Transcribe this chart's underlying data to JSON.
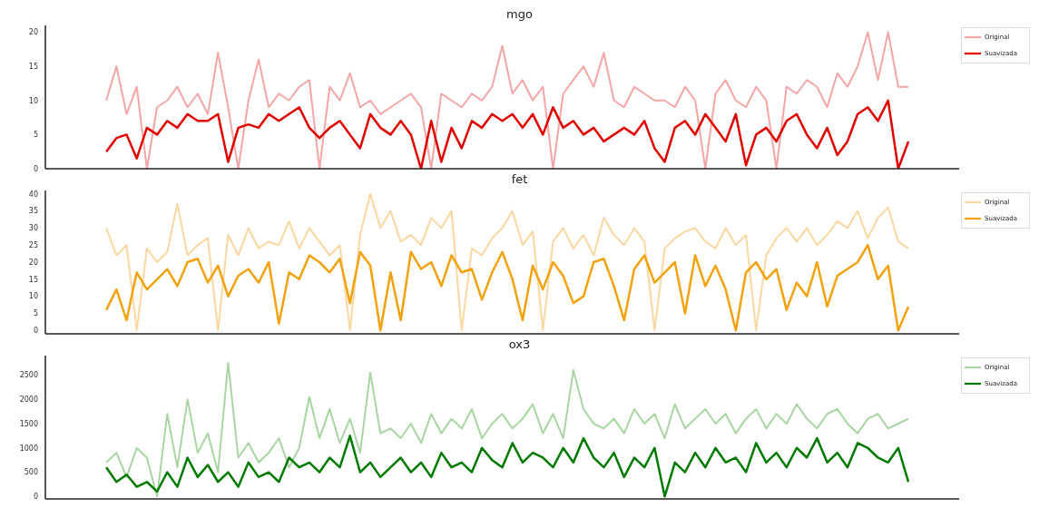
{
  "chart_data": [
    {
      "type": "line",
      "title": "mgo",
      "categories": [
        null,
        null,
        null,
        null,
        null,
        null,
        null,
        null,
        null,
        null,
        null,
        null,
        null,
        null,
        null,
        null,
        null,
        null,
        null,
        null,
        null,
        null,
        null,
        null,
        null,
        null,
        null,
        null,
        null,
        null,
        null,
        null,
        null,
        null,
        null,
        null,
        null,
        null,
        null,
        null,
        null,
        null,
        null,
        null,
        null,
        null,
        null,
        null,
        null,
        null,
        null,
        null,
        null,
        null,
        null,
        null,
        null,
        null,
        null,
        null,
        null,
        null,
        null,
        null,
        null,
        null,
        null,
        null,
        null,
        null,
        null,
        null,
        null,
        null,
        null,
        null,
        null,
        null,
        null,
        null
      ],
      "ylim": [
        0,
        21
      ],
      "yticks": [
        0,
        5,
        10,
        15,
        20
      ],
      "legend": "top right",
      "tick_labels": "y",
      "marker": "none",
      "line_style": "solid",
      "series": [
        {
          "name": "Original",
          "color": "#f4a6a6",
          "values": [
            10,
            15,
            8,
            12,
            0,
            9,
            10,
            12,
            9,
            11,
            8,
            17,
            9,
            0,
            10,
            16,
            9,
            11,
            10,
            12,
            13,
            0,
            12,
            10,
            14,
            9,
            10,
            8,
            9,
            10,
            11,
            9,
            0,
            11,
            10,
            9,
            11,
            10,
            12,
            18,
            11,
            13,
            10,
            12,
            0,
            11,
            13,
            15,
            12,
            17,
            10,
            9,
            12,
            11,
            10,
            10,
            9,
            12,
            10,
            0,
            11,
            13,
            10,
            9,
            12,
            10,
            0,
            12,
            11,
            13,
            12,
            9,
            14,
            12,
            15,
            20,
            13,
            20,
            12,
            12
          ]
        },
        {
          "name": "Suavizada",
          "color": "#e00000",
          "values": [
            2.5,
            4.5,
            5,
            1.5,
            6,
            5,
            7,
            6,
            8,
            7,
            7,
            8,
            1,
            6,
            6.5,
            6,
            8,
            7,
            8,
            9,
            6,
            4.5,
            6,
            7,
            5,
            3,
            8,
            6,
            5,
            7,
            5,
            0,
            7,
            1,
            6,
            3,
            7,
            6,
            8,
            7,
            8,
            6,
            8,
            5,
            9,
            6,
            7,
            5,
            6,
            4,
            5,
            6,
            5,
            7,
            3,
            1,
            6,
            7,
            5,
            8,
            6,
            4,
            8,
            0.5,
            5,
            6,
            4,
            7,
            8,
            5,
            3,
            6,
            2,
            4,
            8,
            9,
            7,
            10,
            0,
            4
          ]
        }
      ]
    },
    {
      "type": "line",
      "title": "fet",
      "categories": [
        null,
        null,
        null,
        null,
        null,
        null,
        null,
        null,
        null,
        null,
        null,
        null,
        null,
        null,
        null,
        null,
        null,
        null,
        null,
        null,
        null,
        null,
        null,
        null,
        null,
        null,
        null,
        null,
        null,
        null,
        null,
        null,
        null,
        null,
        null,
        null,
        null,
        null,
        null,
        null,
        null,
        null,
        null,
        null,
        null,
        null,
        null,
        null,
        null,
        null,
        null,
        null,
        null,
        null,
        null,
        null,
        null,
        null,
        null,
        null,
        null,
        null,
        null,
        null,
        null,
        null,
        null,
        null,
        null,
        null,
        null,
        null,
        null,
        null,
        null,
        null,
        null,
        null,
        null,
        null
      ],
      "ylim": [
        -1,
        41
      ],
      "yticks": [
        0,
        5,
        10,
        15,
        20,
        25,
        30,
        35,
        40
      ],
      "legend": "top right",
      "tick_labels": "y",
      "marker": "none",
      "line_style": "solid",
      "series": [
        {
          "name": "Original",
          "color": "#fad7a0",
          "values": [
            30,
            22,
            25,
            0,
            24,
            20,
            23,
            37,
            22,
            25,
            27,
            0,
            28,
            22,
            30,
            24,
            26,
            25,
            32,
            24,
            30,
            26,
            22,
            25,
            0,
            28,
            40,
            30,
            35,
            26,
            28,
            25,
            33,
            30,
            35,
            0,
            24,
            22,
            27,
            30,
            35,
            25,
            29,
            0,
            26,
            30,
            24,
            28,
            22,
            33,
            28,
            25,
            30,
            26,
            0,
            24,
            27,
            29,
            30,
            26,
            24,
            30,
            25,
            28,
            0,
            22,
            27,
            30,
            26,
            30,
            25,
            28,
            32,
            30,
            35,
            27,
            33,
            36,
            26,
            24
          ]
        },
        {
          "name": "Suavizada",
          "color": "#f2a20c",
          "values": [
            6,
            12,
            3,
            17,
            12,
            15,
            18,
            13,
            20,
            21,
            14,
            19,
            10,
            16,
            18,
            14,
            20,
            2,
            17,
            15,
            22,
            20,
            17,
            21,
            8,
            23,
            19,
            0,
            17,
            3,
            23,
            18,
            20,
            13,
            22,
            17,
            18,
            9,
            17,
            23,
            15,
            3,
            19,
            12,
            20,
            16,
            8,
            10,
            20,
            21,
            13,
            3,
            18,
            22,
            14,
            17,
            20,
            5,
            22,
            13,
            19,
            12,
            0,
            17,
            20,
            15,
            18,
            6,
            14,
            10,
            20,
            7,
            16,
            18,
            20,
            25,
            15,
            19,
            0,
            7
          ]
        }
      ]
    },
    {
      "type": "line",
      "title": "ox3",
      "categories": [
        null,
        null,
        null,
        null,
        null,
        null,
        null,
        null,
        null,
        null,
        null,
        null,
        null,
        null,
        null,
        null,
        null,
        null,
        null,
        null,
        null,
        null,
        null,
        null,
        null,
        null,
        null,
        null,
        null,
        null,
        null,
        null,
        null,
        null,
        null,
        null,
        null,
        null,
        null,
        null,
        null,
        null,
        null,
        null,
        null,
        null,
        null,
        null,
        null,
        null,
        null,
        null,
        null,
        null,
        null,
        null,
        null,
        null,
        null,
        null,
        null,
        null,
        null,
        null,
        null,
        null,
        null,
        null,
        null,
        null,
        null,
        null,
        null,
        null,
        null,
        null,
        null,
        null,
        null,
        null
      ],
      "ylim": [
        -50,
        2900
      ],
      "yticks": [
        0,
        500,
        1000,
        1500,
        2000,
        2500
      ],
      "legend": "top right",
      "tick_labels": "y",
      "marker": "none",
      "line_style": "solid",
      "series": [
        {
          "name": "Original",
          "color": "#a8d5a2",
          "values": [
            700,
            900,
            400,
            1000,
            800,
            0,
            1700,
            600,
            2000,
            900,
            1300,
            500,
            2750,
            800,
            1100,
            700,
            900,
            1200,
            600,
            1000,
            2050,
            1200,
            1800,
            1100,
            1600,
            900,
            2550,
            1300,
            1400,
            1200,
            1500,
            1100,
            1700,
            1300,
            1600,
            1400,
            1800,
            1200,
            1500,
            1700,
            1400,
            1600,
            1900,
            1300,
            1700,
            1200,
            2600,
            1800,
            1500,
            1400,
            1600,
            1300,
            1800,
            1500,
            1700,
            1200,
            1900,
            1400,
            1600,
            1800,
            1500,
            1700,
            1300,
            1600,
            1800,
            1400,
            1700,
            1500,
            1900,
            1600,
            1400,
            1700,
            1800,
            1500,
            1300,
            1600,
            1700,
            1400,
            1500,
            1600
          ]
        },
        {
          "name": "Suavizada",
          "color": "#007a00",
          "values": [
            600,
            300,
            450,
            200,
            300,
            100,
            500,
            200,
            800,
            400,
            650,
            300,
            500,
            200,
            700,
            400,
            500,
            300,
            800,
            600,
            700,
            500,
            800,
            600,
            1250,
            500,
            700,
            400,
            600,
            800,
            500,
            700,
            400,
            900,
            600,
            700,
            500,
            1000,
            750,
            600,
            1100,
            700,
            900,
            800,
            600,
            1000,
            700,
            1200,
            800,
            600,
            900,
            400,
            800,
            600,
            1000,
            0,
            700,
            500,
            900,
            600,
            1000,
            700,
            800,
            500,
            1100,
            700,
            900,
            600,
            1000,
            800,
            1200,
            700,
            900,
            600,
            1100,
            1000,
            800,
            700,
            1000,
            300
          ]
        }
      ]
    }
  ]
}
